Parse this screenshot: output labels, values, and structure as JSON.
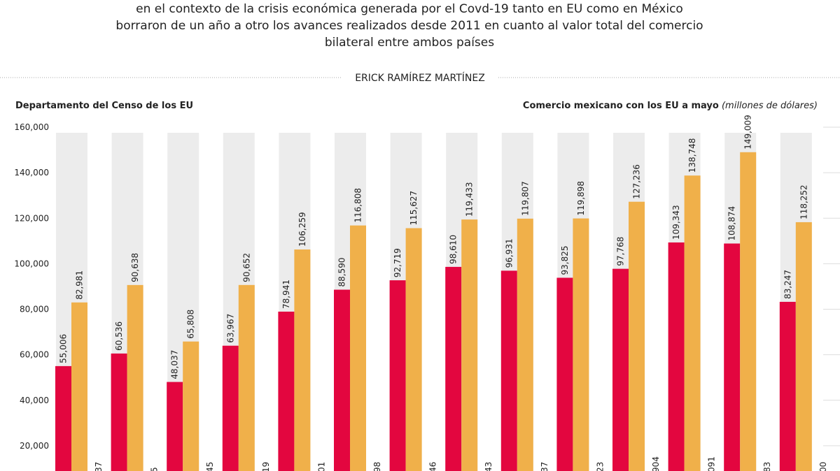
{
  "header": {
    "lines": [
      "en el contexto de la crisis económica generada por el Covd-19 tanto en EU como en México",
      "borraron de un año a otro los avances realizados desde 2011 en cuanto al valor total del comercio",
      "bilateral entre ambos países"
    ],
    "author": "ERICK RAMÍREZ MARTÍNEZ"
  },
  "chart_data": {
    "type": "bar",
    "source": "Departamento del Censo de los EU",
    "label": "Comercio mexicano con los EU a mayo",
    "unit": "(millones de dólares)",
    "series": [
      {
        "color": "#e3063f",
        "values": [
          55006,
          60536,
          48037,
          63967,
          78941,
          88590,
          92719,
          98610,
          96931,
          93825,
          97768,
          109343,
          108874,
          83247
        ],
        "value_labels": [
          "55,006",
          "60,536",
          "48,037",
          "63,967",
          "78,941",
          "88,590",
          "92,719",
          "98,610",
          "96,931",
          "93,825",
          "97,768",
          "109,343",
          "108,874",
          "83,247"
        ]
      },
      {
        "color": "#f0b04a",
        "values": [
          82981,
          90638,
          65808,
          90652,
          106259,
          116808,
          115627,
          119433,
          119807,
          119898,
          127236,
          138748,
          149009,
          118252
        ],
        "value_labels": [
          "82,981",
          "90,638",
          "65,808",
          "90,652",
          "106,259",
          "116,808",
          "115,627",
          "119,433",
          "119,807",
          "119,898",
          "127,236",
          "138,748",
          "149,009",
          "118,252"
        ]
      }
    ],
    "cropped_labels": [
      "37",
      "5",
      "45",
      "19",
      "01",
      "98",
      "46",
      "43",
      "37",
      "23",
      "904",
      "091",
      "83",
      "00"
    ],
    "ylim": [
      0,
      160000
    ],
    "yticks": [
      {
        "value": 20000,
        "label": "20,000"
      },
      {
        "value": 40000,
        "label": "40,000"
      },
      {
        "value": 60000,
        "label": "60,000"
      },
      {
        "value": 80000,
        "label": "80,000"
      },
      {
        "value": 100000,
        "label": "100,000"
      },
      {
        "value": 120000,
        "label": "120,000"
      },
      {
        "value": 140000,
        "label": "140,000"
      },
      {
        "value": 160000,
        "label": "160,000"
      }
    ],
    "band_color": "#ececec"
  }
}
